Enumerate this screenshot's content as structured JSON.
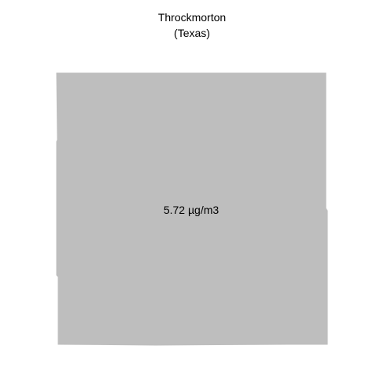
{
  "title": {
    "name": "Throckmorton",
    "state": "(Texas)"
  },
  "county": {
    "value_label": "5.72 µg/m3",
    "fill_color": "#bebebe"
  }
}
